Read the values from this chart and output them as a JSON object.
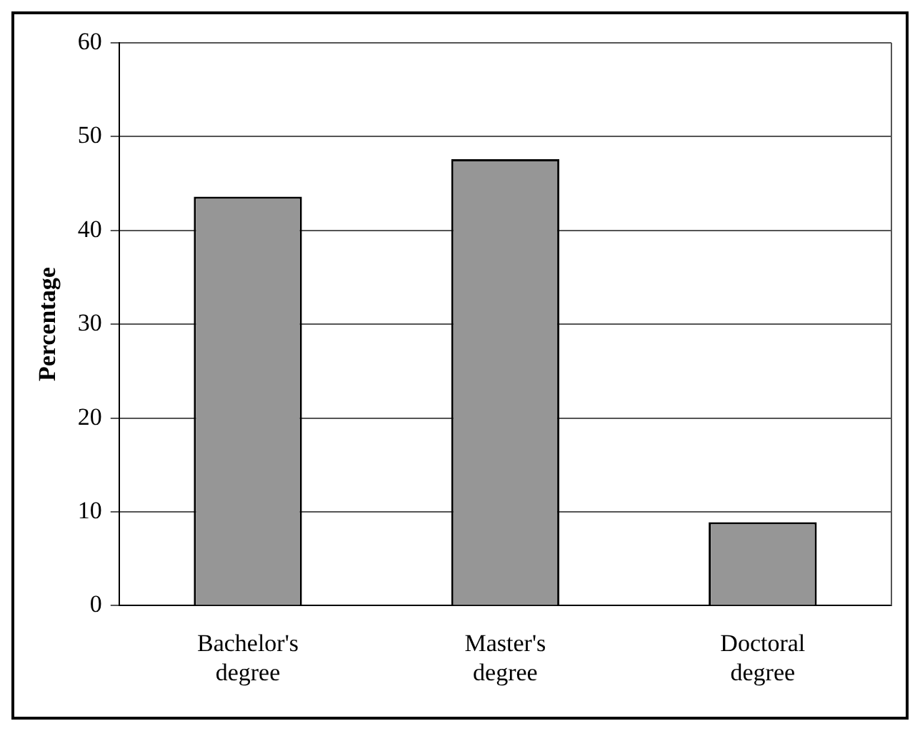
{
  "chart_data": {
    "type": "bar",
    "ylabel": "Percentage",
    "categories": [
      "Bachelor's degree",
      "Master's degree",
      "Doctoral degree"
    ],
    "values": [
      43.6,
      47.6,
      8.9
    ],
    "color": "#969696",
    "ylim": [
      0,
      60
    ],
    "yticks": [
      0,
      10,
      20,
      30,
      40,
      50,
      60
    ],
    "grid": "y",
    "legend": false
  }
}
